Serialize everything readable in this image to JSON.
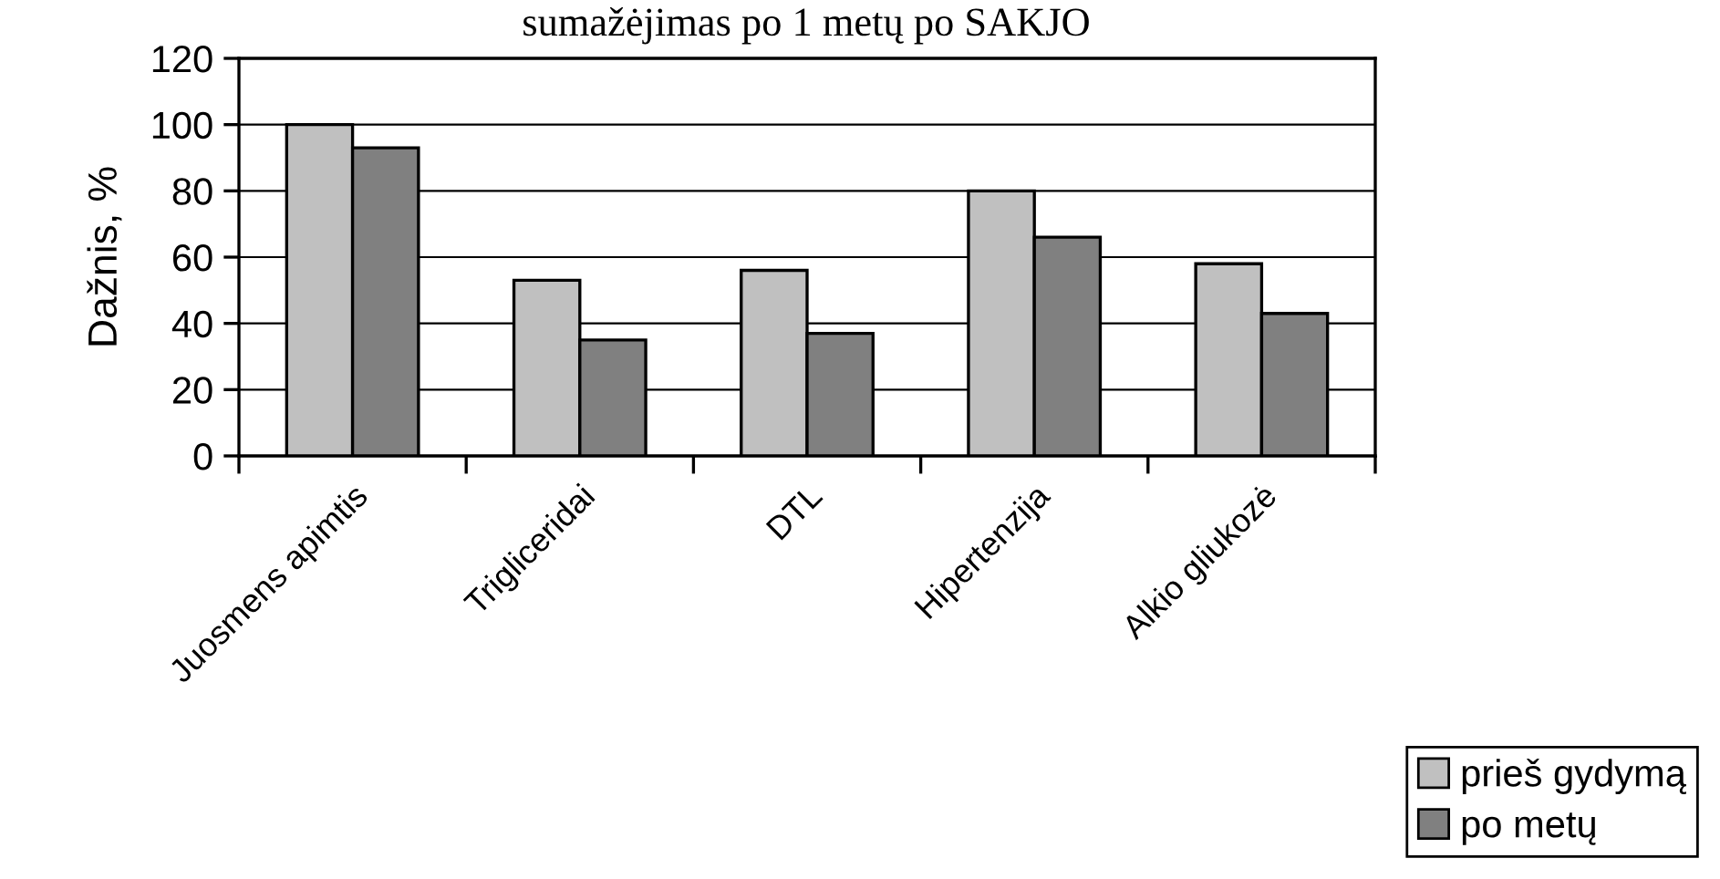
{
  "chart_data": {
    "type": "bar",
    "title": "sumažėjimas po 1 metų po SAKJO",
    "ylabel": "Dažnis, %",
    "categories": [
      "Juosmens apimtis",
      "Trigliceridai",
      "DTL",
      "Hipertenzija",
      "Alkio gliukozė"
    ],
    "series": [
      {
        "name": "prieš gydymą",
        "color": "#c0c0c0",
        "values": [
          100,
          53,
          56,
          80,
          58
        ]
      },
      {
        "name": "po metų",
        "color": "#808080",
        "values": [
          93,
          35,
          37,
          66,
          43
        ]
      }
    ],
    "ylim": [
      0,
      120
    ],
    "yticks": [
      0,
      20,
      40,
      60,
      80,
      100,
      120
    ],
    "grid": "y",
    "legend": "bottom right"
  }
}
